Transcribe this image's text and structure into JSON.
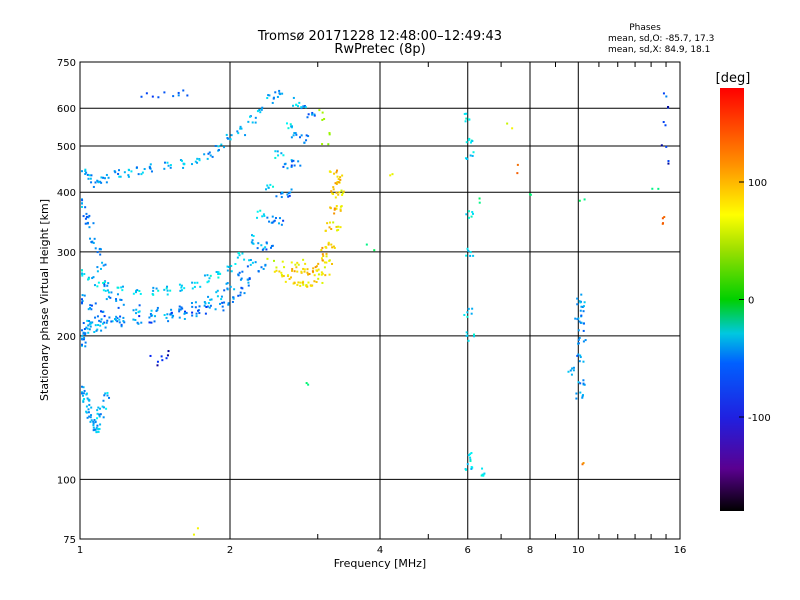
{
  "title": {
    "line1": "Tromsø 20171228 12:48:00–12:49:43",
    "line2": "RwPretec (8p)"
  },
  "phases_box": {
    "heading": "Phases",
    "line_o": "mean, sd,O: -85.7, 17.3",
    "line_x": "mean, sd,X:  84.9, 18.1"
  },
  "chart_data": {
    "type": "scatter",
    "xlabel": "Frequency [MHz]",
    "ylabel": "Stationary phase Virtual Height [km]",
    "x_scale": "log",
    "y_scale": "log",
    "xlim": [
      1,
      16
    ],
    "ylim": [
      75,
      750
    ],
    "x_ticks": [
      1,
      2,
      4,
      6,
      8,
      10,
      16
    ],
    "x_tick_labels": [
      "1",
      "2",
      "4",
      "6",
      "8",
      "10",
      "16"
    ],
    "x_minor_ticks": [
      3,
      5,
      7,
      9,
      11,
      12,
      13,
      14,
      15
    ],
    "y_ticks": [
      75,
      100,
      200,
      300,
      400,
      500,
      600,
      750
    ],
    "y_tick_labels": [
      "75",
      "100",
      "200",
      "300",
      "400",
      "500",
      "600",
      "750"
    ],
    "grid": true,
    "colorbar": {
      "label": "[deg]",
      "range": [
        -180,
        180
      ],
      "ticks": [
        100,
        0,
        -100
      ],
      "tick_labels": [
        "100",
        "0",
        "-100"
      ]
    },
    "series": [
      {
        "phase": -95,
        "points": [
          [
            1.02,
            440
          ],
          [
            1.05,
            430
          ],
          [
            1.08,
            420
          ],
          [
            1.12,
            430
          ],
          [
            1.18,
            440
          ],
          [
            1.25,
            440
          ],
          [
            1.32,
            445
          ],
          [
            1.4,
            450
          ],
          [
            1.5,
            455
          ],
          [
            1.6,
            460
          ],
          [
            1.7,
            470
          ],
          [
            1.8,
            480
          ],
          [
            1.9,
            500
          ],
          [
            2.0,
            520
          ],
          [
            2.1,
            540
          ],
          [
            2.2,
            570
          ],
          [
            2.3,
            600
          ],
          [
            2.4,
            630
          ],
          [
            2.5,
            650
          ]
        ]
      },
      {
        "phase": -100,
        "points": [
          [
            1.0,
            380
          ],
          [
            1.02,
            360
          ],
          [
            1.04,
            340
          ],
          [
            1.06,
            320
          ],
          [
            1.08,
            300
          ],
          [
            1.1,
            280
          ],
          [
            1.12,
            260
          ],
          [
            1.15,
            245
          ],
          [
            1.2,
            235
          ],
          [
            1.3,
            228
          ],
          [
            1.4,
            225
          ],
          [
            1.5,
            225
          ],
          [
            1.6,
            228
          ],
          [
            1.7,
            232
          ],
          [
            1.8,
            238
          ],
          [
            1.9,
            245
          ],
          [
            2.0,
            255
          ],
          [
            2.1,
            268
          ],
          [
            2.2,
            285
          ],
          [
            2.3,
            310
          ],
          [
            2.4,
            350
          ],
          [
            2.5,
            400
          ],
          [
            2.6,
            460
          ],
          [
            2.7,
            530
          ],
          [
            2.8,
            600
          ]
        ]
      },
      {
        "phase": -110,
        "points": [
          [
            1.0,
            240
          ],
          [
            1.05,
            230
          ],
          [
            1.1,
            222
          ],
          [
            1.2,
            218
          ],
          [
            1.3,
            217
          ],
          [
            1.4,
            218
          ],
          [
            1.5,
            220
          ],
          [
            1.6,
            222
          ],
          [
            1.7,
            224
          ],
          [
            1.8,
            228
          ],
          [
            1.9,
            232
          ],
          [
            2.0,
            238
          ],
          [
            2.1,
            248
          ],
          [
            2.2,
            260
          ],
          [
            2.3,
            280
          ],
          [
            2.4,
            310
          ],
          [
            2.5,
            350
          ],
          [
            2.6,
            400
          ],
          [
            2.7,
            460
          ],
          [
            2.8,
            520
          ],
          [
            2.9,
            580
          ]
        ]
      },
      {
        "phase": -80,
        "points": [
          [
            1.0,
            270
          ],
          [
            1.05,
            262
          ],
          [
            1.1,
            255
          ],
          [
            1.2,
            250
          ],
          [
            1.3,
            248
          ],
          [
            1.4,
            248
          ],
          [
            1.5,
            250
          ],
          [
            1.6,
            253
          ],
          [
            1.7,
            258
          ],
          [
            1.8,
            265
          ],
          [
            1.9,
            272
          ],
          [
            2.0,
            280
          ],
          [
            2.1,
            295
          ],
          [
            2.2,
            320
          ],
          [
            2.3,
            360
          ],
          [
            2.4,
            410
          ],
          [
            2.5,
            480
          ],
          [
            2.6,
            550
          ],
          [
            2.7,
            620
          ]
        ]
      },
      {
        "phase": -100,
        "points": [
          [
            1.0,
            200
          ],
          [
            1.01,
            195
          ],
          [
            1.02,
            205
          ],
          [
            1.03,
            210
          ],
          [
            1.05,
            215
          ],
          [
            1.08,
            208
          ],
          [
            1.1,
            212
          ],
          [
            1.15,
            218
          ],
          [
            1.2,
            215
          ]
        ]
      },
      {
        "phase": -90,
        "points": [
          [
            1.0,
            155
          ],
          [
            1.02,
            150
          ],
          [
            1.03,
            145
          ],
          [
            1.04,
            140
          ],
          [
            1.05,
            135
          ],
          [
            1.06,
            130
          ],
          [
            1.07,
            128
          ],
          [
            1.08,
            130
          ],
          [
            1.09,
            135
          ],
          [
            1.1,
            140
          ],
          [
            1.12,
            150
          ]
        ]
      },
      {
        "phase": -130,
        "points": [
          [
            1.4,
            180
          ],
          [
            1.45,
            178
          ],
          [
            1.5,
            182
          ],
          [
            1.48,
            185
          ]
        ]
      },
      {
        "phase": -120,
        "points": [
          [
            1.35,
            640
          ],
          [
            1.42,
            645
          ],
          [
            1.5,
            645
          ],
          [
            1.58,
            650
          ],
          [
            1.62,
            648
          ]
        ]
      },
      {
        "phase": 95,
        "points": [
          [
            2.5,
            270
          ],
          [
            2.6,
            265
          ],
          [
            2.7,
            260
          ],
          [
            2.8,
            258
          ],
          [
            2.9,
            260
          ],
          [
            3.0,
            265
          ],
          [
            3.1,
            275
          ],
          [
            3.15,
            290
          ],
          [
            3.2,
            310
          ],
          [
            3.25,
            340
          ],
          [
            3.28,
            370
          ],
          [
            3.3,
            400
          ],
          [
            3.3,
            430
          ]
        ]
      },
      {
        "phase": 110,
        "points": [
          [
            2.7,
            280
          ],
          [
            2.8,
            275
          ],
          [
            2.9,
            275
          ],
          [
            3.0,
            280
          ],
          [
            3.05,
            295
          ],
          [
            3.1,
            310
          ],
          [
            3.15,
            340
          ],
          [
            3.2,
            370
          ],
          [
            3.22,
            400
          ],
          [
            3.25,
            420
          ],
          [
            3.2,
            440
          ]
        ]
      },
      {
        "phase": 80,
        "points": [
          [
            2.4,
            290
          ],
          [
            2.5,
            285
          ],
          [
            2.6,
            282
          ],
          [
            2.7,
            283
          ],
          [
            2.8,
            290
          ]
        ]
      },
      {
        "phase": 60,
        "points": [
          [
            3.1,
            580
          ],
          [
            3.05,
            600
          ],
          [
            3.15,
            540
          ],
          [
            3.1,
            510
          ]
        ]
      },
      {
        "phase": -75,
        "points": [
          [
            6.0,
            575
          ],
          [
            6.05,
            520
          ],
          [
            6.03,
            480
          ],
          [
            6.0,
            360
          ],
          [
            6.05,
            300
          ],
          [
            6.0,
            225
          ],
          [
            6.03,
            200
          ],
          [
            6.0,
            112
          ],
          [
            6.02,
            106
          ],
          [
            6.5,
            104
          ]
        ]
      },
      {
        "phase": -100,
        "points": [
          [
            10.1,
            240
          ],
          [
            10.05,
            230
          ],
          [
            10.0,
            220
          ],
          [
            10.12,
            210
          ],
          [
            10.1,
            195
          ],
          [
            10.05,
            180
          ],
          [
            10.1,
            160
          ],
          [
            10.0,
            150
          ],
          [
            9.7,
            170
          ]
        ]
      },
      {
        "phase": -125,
        "points": [
          [
            14.8,
            640
          ],
          [
            14.85,
            600
          ],
          [
            14.9,
            560
          ],
          [
            14.8,
            500
          ],
          [
            14.85,
            470
          ]
        ]
      },
      {
        "phase": 140,
        "points": [
          [
            14.9,
            360
          ],
          [
            14.85,
            350
          ],
          [
            7.4,
            450
          ],
          [
            10.05,
            110
          ]
        ]
      },
      {
        "phase": -40,
        "points": [
          [
            3.8,
            310
          ],
          [
            2.8,
            160
          ],
          [
            6.3,
            390
          ],
          [
            8.0,
            390
          ],
          [
            14.2,
            410
          ],
          [
            10.1,
            380
          ]
        ]
      },
      {
        "phase": 90,
        "points": [
          [
            4.2,
            430
          ],
          [
            7.3,
            555
          ],
          [
            1.7,
            78
          ]
        ]
      }
    ]
  }
}
